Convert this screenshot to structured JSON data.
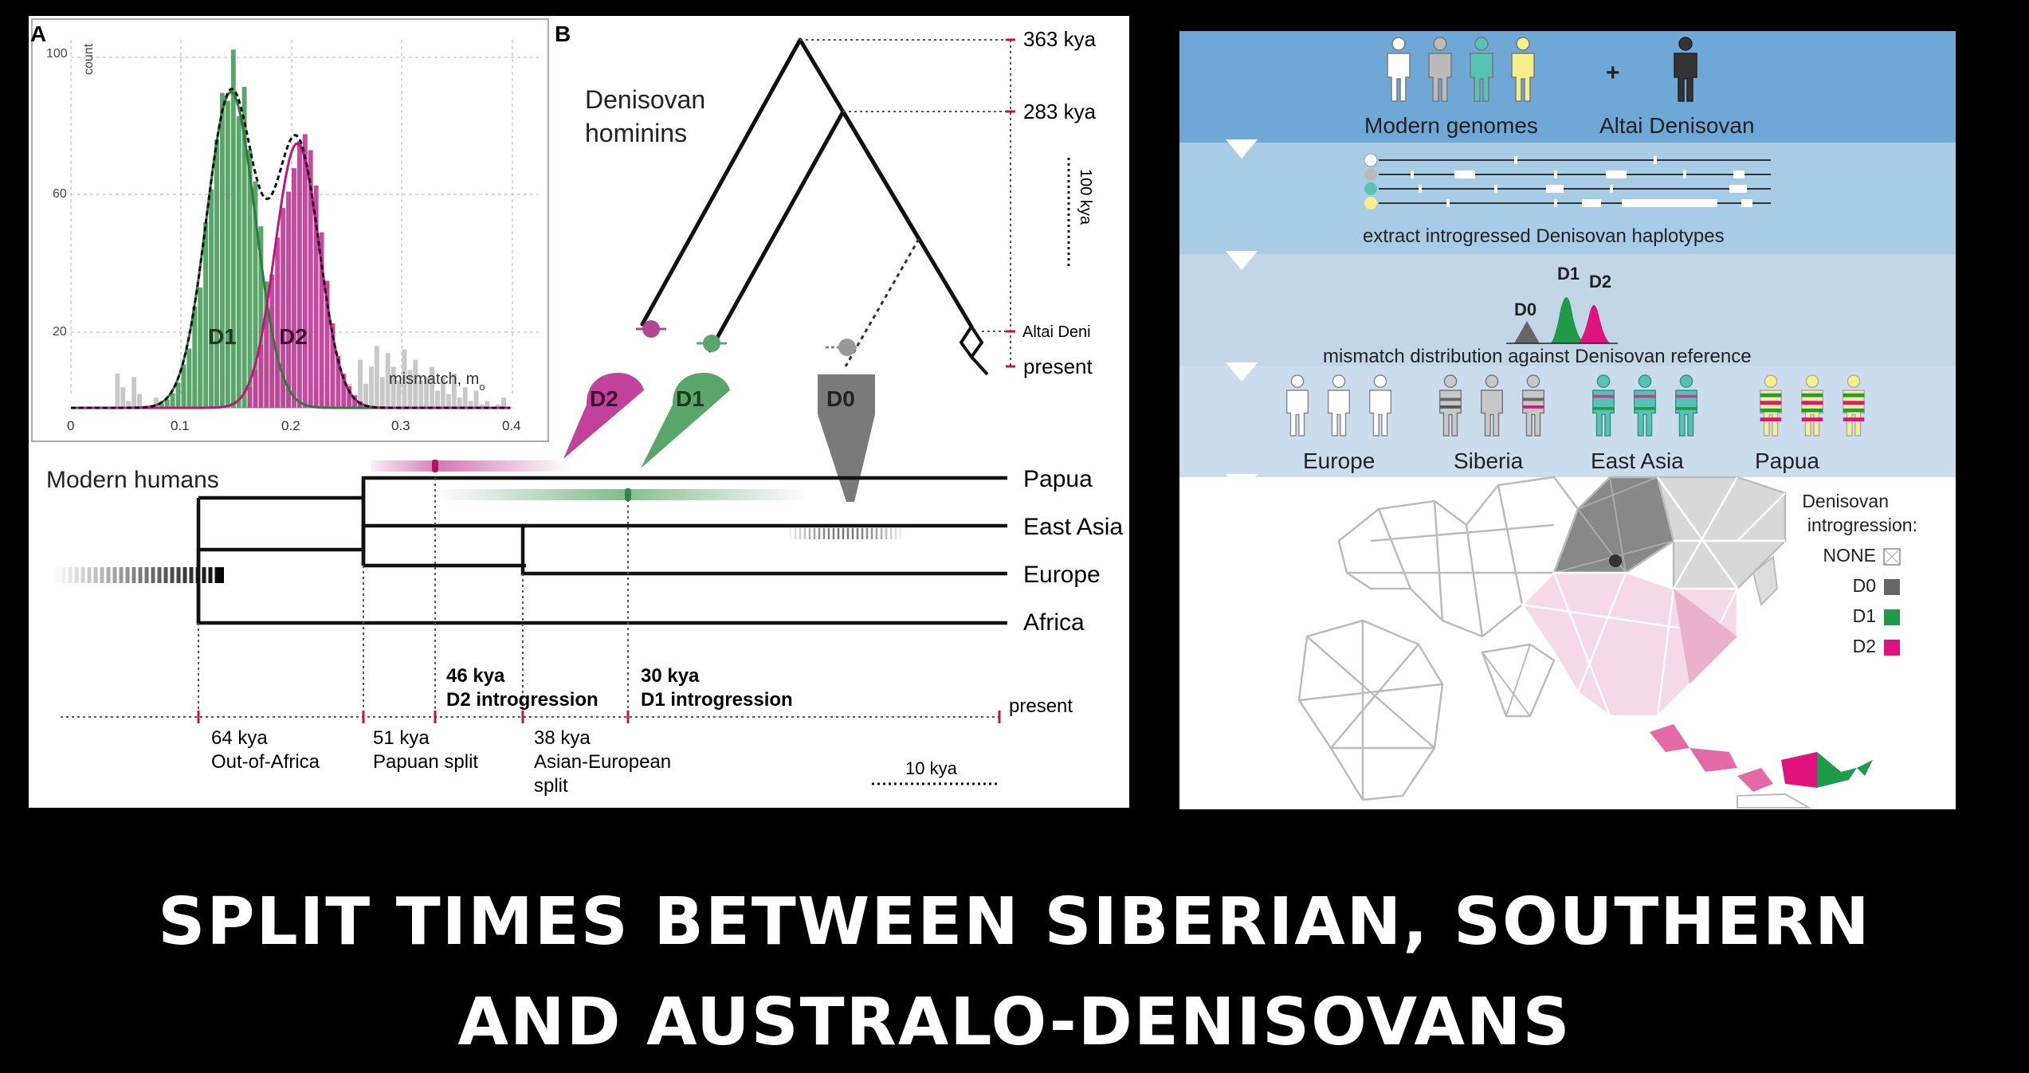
{
  "title": {
    "line1": "SPLIT TIMES BETWEEN SIBERIAN, SOUTHERN",
    "line2": "AND AUSTRALO-DENISOVANS"
  },
  "panelA": {
    "label": "A",
    "ylabel": "count",
    "xlabel": "mismatch, m",
    "xlabel_sub": "o",
    "y_ticks": [
      "100",
      "60",
      "20"
    ],
    "x_ticks": [
      "0",
      "0.1",
      "0.2",
      "0.3",
      "0.4"
    ],
    "d1": "D1",
    "d2": "D2"
  },
  "panelB": {
    "label": "B",
    "denisovan_line1": "Denisovan",
    "denisovan_line2": "hominins",
    "time_363": "363 kya",
    "time_283": "283 kya",
    "scale_100": "100 kya",
    "altai": "Altai Deni",
    "present": "present",
    "d2": "D2",
    "d1": "D1",
    "d0": "D0"
  },
  "modern": {
    "label": "Modern humans",
    "populations": [
      "Papua",
      "East Asia",
      "Europe",
      "Africa"
    ],
    "events": {
      "d2_time": "46 kya",
      "d2_text": "D2 introgression",
      "d1_time": "30 kya",
      "d1_text": "D1 introgression",
      "present": "present",
      "ooa_time": "64 kya",
      "ooa_text": "Out-of-Africa",
      "papuan_time": "51 kya",
      "papuan_text": "Papuan split",
      "asian_time": "38 kya",
      "asian_text1": "Asian-European",
      "asian_text2": "split",
      "scale": "10 kya"
    }
  },
  "workflow": {
    "plus": "+",
    "modern_genomes": "Modern genomes",
    "altai_denisovan": "Altai Denisovan",
    "extract": "extract introgressed Denisovan haplotypes",
    "d0": "D0",
    "d1": "D1",
    "d2": "D2",
    "mismatch_text": "mismatch distribution against Denisovan reference",
    "regions": [
      "Europe",
      "Siberia",
      "East Asia",
      "Papua"
    ]
  },
  "map_legend": {
    "title1": "Denisovan",
    "title2": "introgression:",
    "items": [
      {
        "label": "NONE",
        "color": "#ffffff"
      },
      {
        "label": "D0",
        "color": "#666666"
      },
      {
        "label": "D1",
        "color": "#1f9a4a"
      },
      {
        "label": "D2",
        "color": "#e0137e"
      }
    ]
  },
  "colors": {
    "d1_green": "#5aa56a",
    "d2_magenta": "#c2419a",
    "d0_gray": "#808080",
    "band1": "#6fa8d6",
    "band2": "#a9cce6",
    "band3": "#c3d6e8",
    "band4": "#cadcee"
  }
}
